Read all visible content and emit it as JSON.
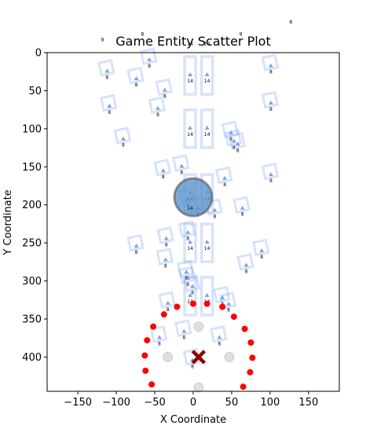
{
  "chart_data": {
    "type": "scatter",
    "title": "Game Entity Scatter Plot",
    "xlabel": "X Coordinate",
    "ylabel": "Y Coordinate",
    "xlim": [
      -190,
      190
    ],
    "ylim": [
      445,
      0
    ],
    "y_inverted": true,
    "grid": false,
    "xticks": [
      -150,
      -100,
      -50,
      0,
      50,
      100,
      150
    ],
    "yticks": [
      0,
      50,
      100,
      150,
      200,
      250,
      300,
      350,
      400
    ],
    "colors": {
      "box": "#6f96f0",
      "marker": "#5b8ed6",
      "big_circle": "#5b93cc",
      "red": "#ff0000",
      "gray": "#bbbbbb",
      "center": "#8b0000"
    },
    "series": [
      {
        "label_value": "8",
        "kind": "small_boxes",
        "points": [
          [
            -113,
            20
          ],
          [
            -75,
            30
          ],
          [
            -58,
            5
          ],
          [
            -38,
            45
          ],
          [
            100,
            13
          ],
          [
            -110,
            66
          ],
          [
            -47,
            69
          ],
          [
            100,
            62
          ],
          [
            -92,
            109
          ],
          [
            48,
            101
          ],
          [
            57,
            116
          ],
          [
            -40,
            151
          ],
          [
            -16,
            145
          ],
          [
            40,
            161
          ],
          [
            100,
            156
          ],
          [
            -75,
            250
          ],
          [
            -36,
            240
          ],
          [
            -8,
            232
          ],
          [
            88,
            256
          ],
          [
            68,
            275
          ],
          [
            -37,
            268
          ],
          [
            -10,
            284
          ],
          [
            63,
            200
          ],
          [
            -34,
            325
          ],
          [
            37,
            318
          ],
          [
            -45,
            370
          ],
          [
            -13,
            362
          ],
          [
            33,
            370
          ],
          [
            -2,
            400
          ],
          [
            -8,
            188
          ],
          [
            5,
            200
          ],
          [
            27,
            203
          ],
          [
            -2,
            303
          ],
          [
            -8,
            292
          ],
          [
            45,
            326
          ],
          [
            52,
            112
          ]
        ]
      },
      {
        "label_value": "14",
        "kind": "tall_boxes",
        "points": [
          [
            -4,
            30
          ],
          [
            18,
            30
          ],
          [
            -4,
            100
          ],
          [
            18,
            100
          ],
          [
            -4,
            185
          ],
          [
            18,
            185
          ],
          [
            -4,
            250
          ],
          [
            18,
            250
          ],
          [
            -4,
            320
          ],
          [
            18,
            320
          ]
        ]
      },
      {
        "kind": "labels_above_plot",
        "items": [
          {
            "x": -118,
            "y": -15,
            "text": "8"
          },
          {
            "x": -66,
            "y": -22,
            "text": "8"
          },
          {
            "x": -4,
            "y": -10,
            "text": "14"
          },
          {
            "x": 18,
            "y": -10,
            "text": "14"
          },
          {
            "x": 62,
            "y": -22,
            "text": "8"
          },
          {
            "x": 127,
            "y": -38,
            "text": "8"
          }
        ]
      },
      {
        "kind": "big_circle",
        "point": [
          0,
          190
        ],
        "label": "14"
      },
      {
        "kind": "red_dots",
        "points": [
          [
            0,
            330
          ],
          [
            18,
            330
          ],
          [
            -21,
            334
          ],
          [
            38,
            334
          ],
          [
            -38,
            344
          ],
          [
            53,
            347
          ],
          [
            -52,
            360
          ],
          [
            67,
            363
          ],
          [
            -60,
            378
          ],
          [
            75,
            381
          ],
          [
            -63,
            398
          ],
          [
            77,
            401
          ],
          [
            -62,
            418
          ],
          [
            74,
            420
          ],
          [
            -54,
            436
          ],
          [
            65,
            439
          ]
        ]
      },
      {
        "kind": "gray_dots",
        "points": [
          [
            7,
            360
          ],
          [
            -33,
            400
          ],
          [
            47,
            400
          ],
          [
            7,
            440
          ]
        ]
      },
      {
        "kind": "center_marker",
        "point": [
          7,
          400
        ]
      }
    ]
  }
}
